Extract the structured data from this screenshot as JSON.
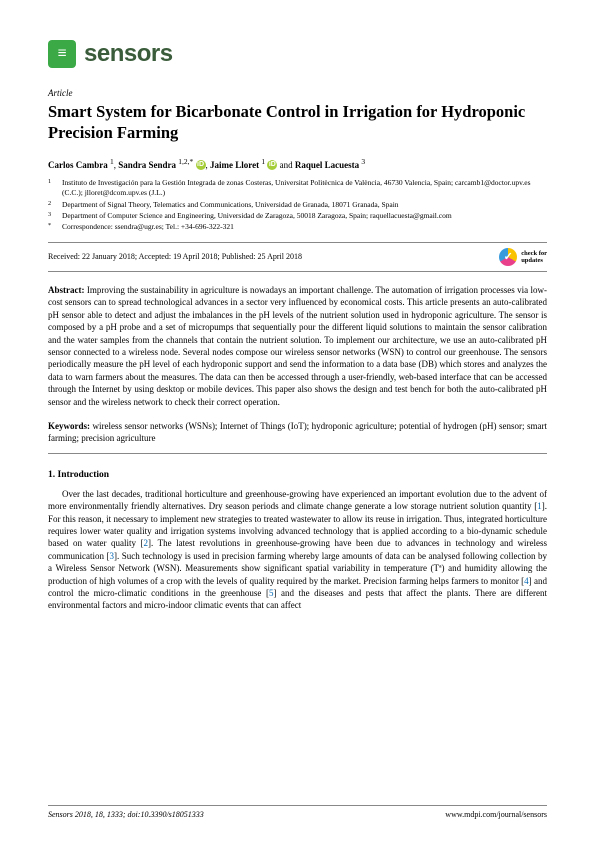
{
  "journal": {
    "logo_glyph": "≡",
    "name": "sensors"
  },
  "article_type": "Article",
  "title": "Smart System for Bicarbonate Control in Irrigation for Hydroponic Precision Farming",
  "authors": [
    {
      "name": "Carlos Cambra",
      "sup": "1"
    },
    {
      "name": "Sandra Sendra",
      "sup": "1,2,*",
      "orcid": true
    },
    {
      "name": "Jaime Lloret",
      "sup": "1",
      "orcid": true
    },
    {
      "name": "Raquel Lacuesta",
      "sup": "3"
    }
  ],
  "affiliations": [
    {
      "num": "1",
      "text": "Instituto de Investigación para la Gestión Integrada de zonas Costeras, Universitat Politècnica de València, 46730 Valencia, Spain; carcamb1@doctor.upv.es (C.C.); jlloret@dcom.upv.es (J.L.)"
    },
    {
      "num": "2",
      "text": "Department of Signal Theory, Telematics and Communications, Universidad de Granada, 18071 Granada, Spain"
    },
    {
      "num": "3",
      "text": "Department of Computer Science and Engineering, Universidad de Zaragoza, 50018 Zaragoza, Spain; raquellacuesta@gmail.com"
    },
    {
      "num": "*",
      "text": "Correspondence: ssendra@ugr.es; Tel.: +34-696-322-321"
    }
  ],
  "dates": "Received: 22 January 2018; Accepted: 19 April 2018; Published: 25 April 2018",
  "check_updates": "check for\nupdates",
  "abstract_label": "Abstract:",
  "abstract": "Improving the sustainability in agriculture is nowadays an important challenge. The automation of irrigation processes via low-cost sensors can to spread technological advances in a sector very influenced by economical costs. This article presents an auto-calibrated pH sensor able to detect and adjust the imbalances in the pH levels of the nutrient solution used in hydroponic agriculture. The sensor is composed by a pH probe and a set of micropumps that sequentially pour the different liquid solutions to maintain the sensor calibration and the water samples from the channels that contain the nutrient solution. To implement our architecture, we use an auto-calibrated pH sensor connected to a wireless node. Several nodes compose our wireless sensor networks (WSN) to control our greenhouse. The sensors periodically measure the pH level of each hydroponic support and send the information to a data base (DB) which stores and analyzes the data to warn farmers about the measures. The data can then be accessed through a user-friendly, web-based interface that can be accessed through the Internet by using desktop or mobile devices. This paper also shows the design and test bench for both the auto-calibrated pH sensor and the wireless network to check their correct operation.",
  "keywords_label": "Keywords:",
  "keywords": "wireless sensor networks (WSNs); Internet of Things (IoT); hydroponic agriculture; potential of hydrogen (pH) sensor; smart farming; precision agriculture",
  "section1_title": "1. Introduction",
  "intro_part1": "Over the last decades, traditional horticulture and greenhouse-growing have experienced an important evolution due to the advent of more environmentally friendly alternatives. Dry season periods and climate change generate a low storage nutrient solution quantity [",
  "ref1": "1",
  "intro_part2": "]. For this reason, it necessary to implement new strategies to treated wastewater to allow its reuse in irrigation. Thus, integrated horticulture requires lower water quality and irrigation systems involving advanced technology that is applied according to a bio-dynamic schedule based on water quality [",
  "ref2": "2",
  "intro_part3": "]. The latest revolutions in greenhouse-growing have been due to advances in technology and wireless communication [",
  "ref3": "3",
  "intro_part4": "]. Such technology is used in precision farming whereby large amounts of data can be analysed following collection by a Wireless Sensor Network (WSN). Measurements show significant spatial variability in temperature (Tª) and humidity allowing the production of high volumes of a crop with the levels of quality required by the market. Precision farming helps farmers to monitor [",
  "ref4": "4",
  "intro_part5": "] and control the micro-climatic conditions in the greenhouse [",
  "ref5": "5",
  "intro_part6": "] and the diseases and pests that affect the plants. There are different environmental factors and micro-indoor climatic events that can affect",
  "footer_left": "Sensors 2018, 18, 1333; doi:10.3390/s18051333",
  "footer_right": "www.mdpi.com/journal/sensors"
}
